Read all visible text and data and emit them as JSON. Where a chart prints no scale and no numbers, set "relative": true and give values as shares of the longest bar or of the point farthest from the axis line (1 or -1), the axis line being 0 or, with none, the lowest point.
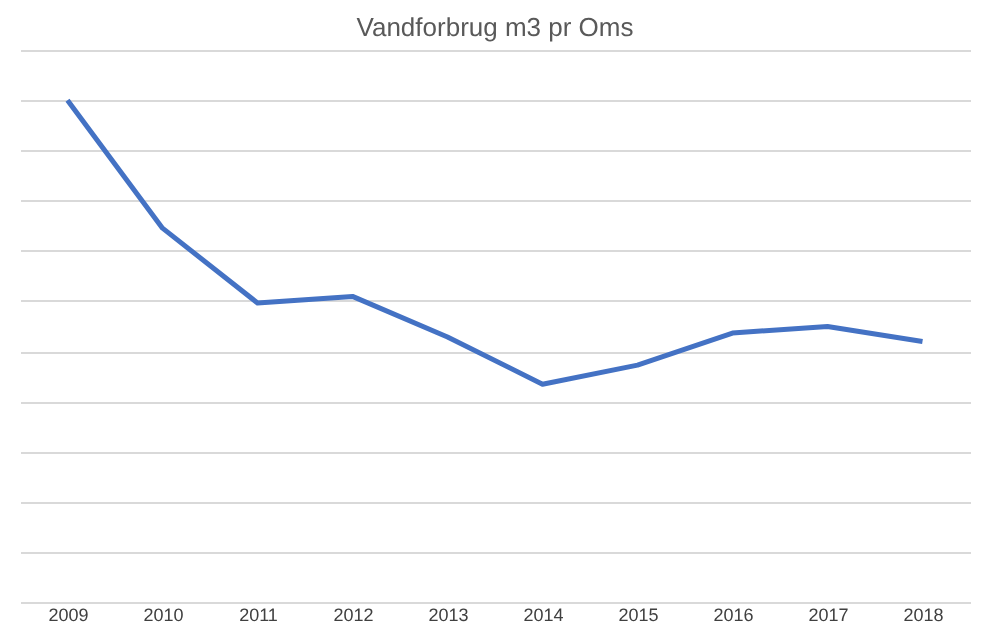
{
  "chart_data": {
    "type": "line",
    "title": "Vandforbrug m3 pr Oms",
    "categories": [
      "2009",
      "2010",
      "2011",
      "2012",
      "2013",
      "2014",
      "2015",
      "2016",
      "2017",
      "2018"
    ],
    "relative": true,
    "grid": "y",
    "marker": "none",
    "line_style": "solid",
    "series": [
      {
        "color": "#4472c4",
        "values": [
          1,
          0.745,
          0.596,
          0.609,
          0.528,
          0.434,
          0.472,
          0.536,
          0.549,
          0.519
        ]
      }
    ]
  }
}
